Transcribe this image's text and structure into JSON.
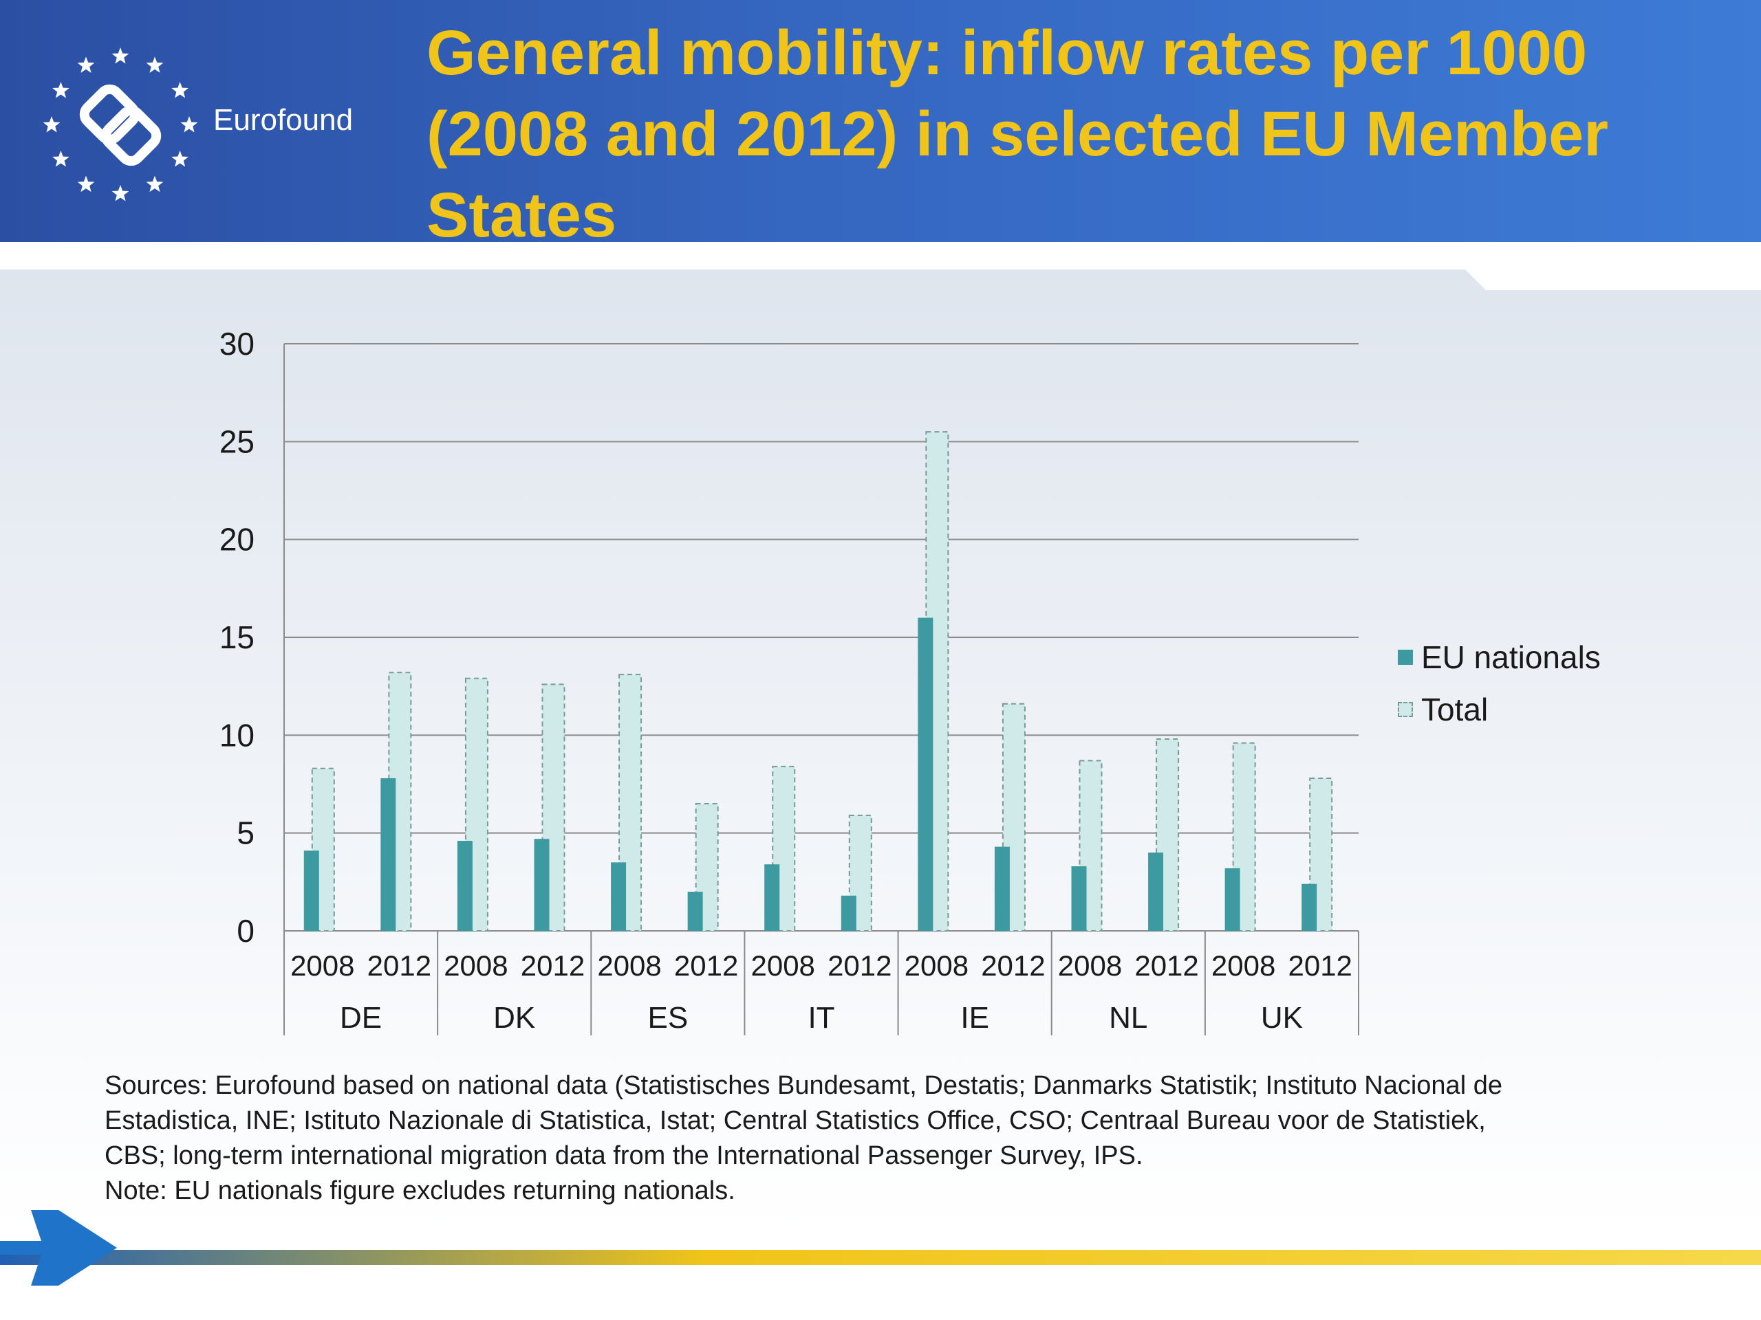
{
  "header": {
    "brand": "Eurofound",
    "title": "General mobility: inflow rates per 1000 (2008 and 2012) in selected EU Member States",
    "title_color": "#f0c419"
  },
  "chart_data": {
    "type": "bar",
    "countries": [
      "DE",
      "DK",
      "ES",
      "IT",
      "IE",
      "NL",
      "UK"
    ],
    "years": [
      "2008",
      "2012"
    ],
    "categories": [
      "2008 DE",
      "2012 DE",
      "2008 DK",
      "2012 DK",
      "2008 ES",
      "2012 ES",
      "2008 IT",
      "2012 IT",
      "2008 IE",
      "2012 IE",
      "2008 NL",
      "2012 NL",
      "2008 UK",
      "2012 UK"
    ],
    "series": [
      {
        "name": "EU nationals",
        "values": [
          4.1,
          7.8,
          4.6,
          4.7,
          3.5,
          2.0,
          3.4,
          1.8,
          16.0,
          4.3,
          3.3,
          4.0,
          3.2,
          2.4
        ],
        "color": "#3c9aa0"
      },
      {
        "name": "Total",
        "values": [
          8.3,
          13.2,
          12.9,
          12.6,
          13.1,
          6.5,
          8.4,
          5.9,
          25.5,
          11.6,
          8.7,
          9.8,
          9.6,
          7.8
        ],
        "color": "#cfeae9"
      }
    ],
    "ylim": [
      0,
      30
    ],
    "yticks": [
      0,
      5,
      10,
      15,
      20,
      25,
      30
    ],
    "grid": true,
    "legend": "right"
  },
  "legend": [
    {
      "label": "EU nationals"
    },
    {
      "label": "Total"
    }
  ],
  "sources": {
    "line1": "Sources: Eurofound based on national data (Statistisches Bundesamt, Destatis; Danmarks Statistik; Instituto Nacional de",
    "line2": "Estadistica, INE; Istituto Nazionale di Statistica, Istat; Central Statistics Office, CSO; Centraal Bureau voor de Statistiek,",
    "line3": "CBS; long-term international migration data from the International Passenger Survey, IPS.",
    "note": "Note: EU nationals figure excludes returning nationals."
  }
}
